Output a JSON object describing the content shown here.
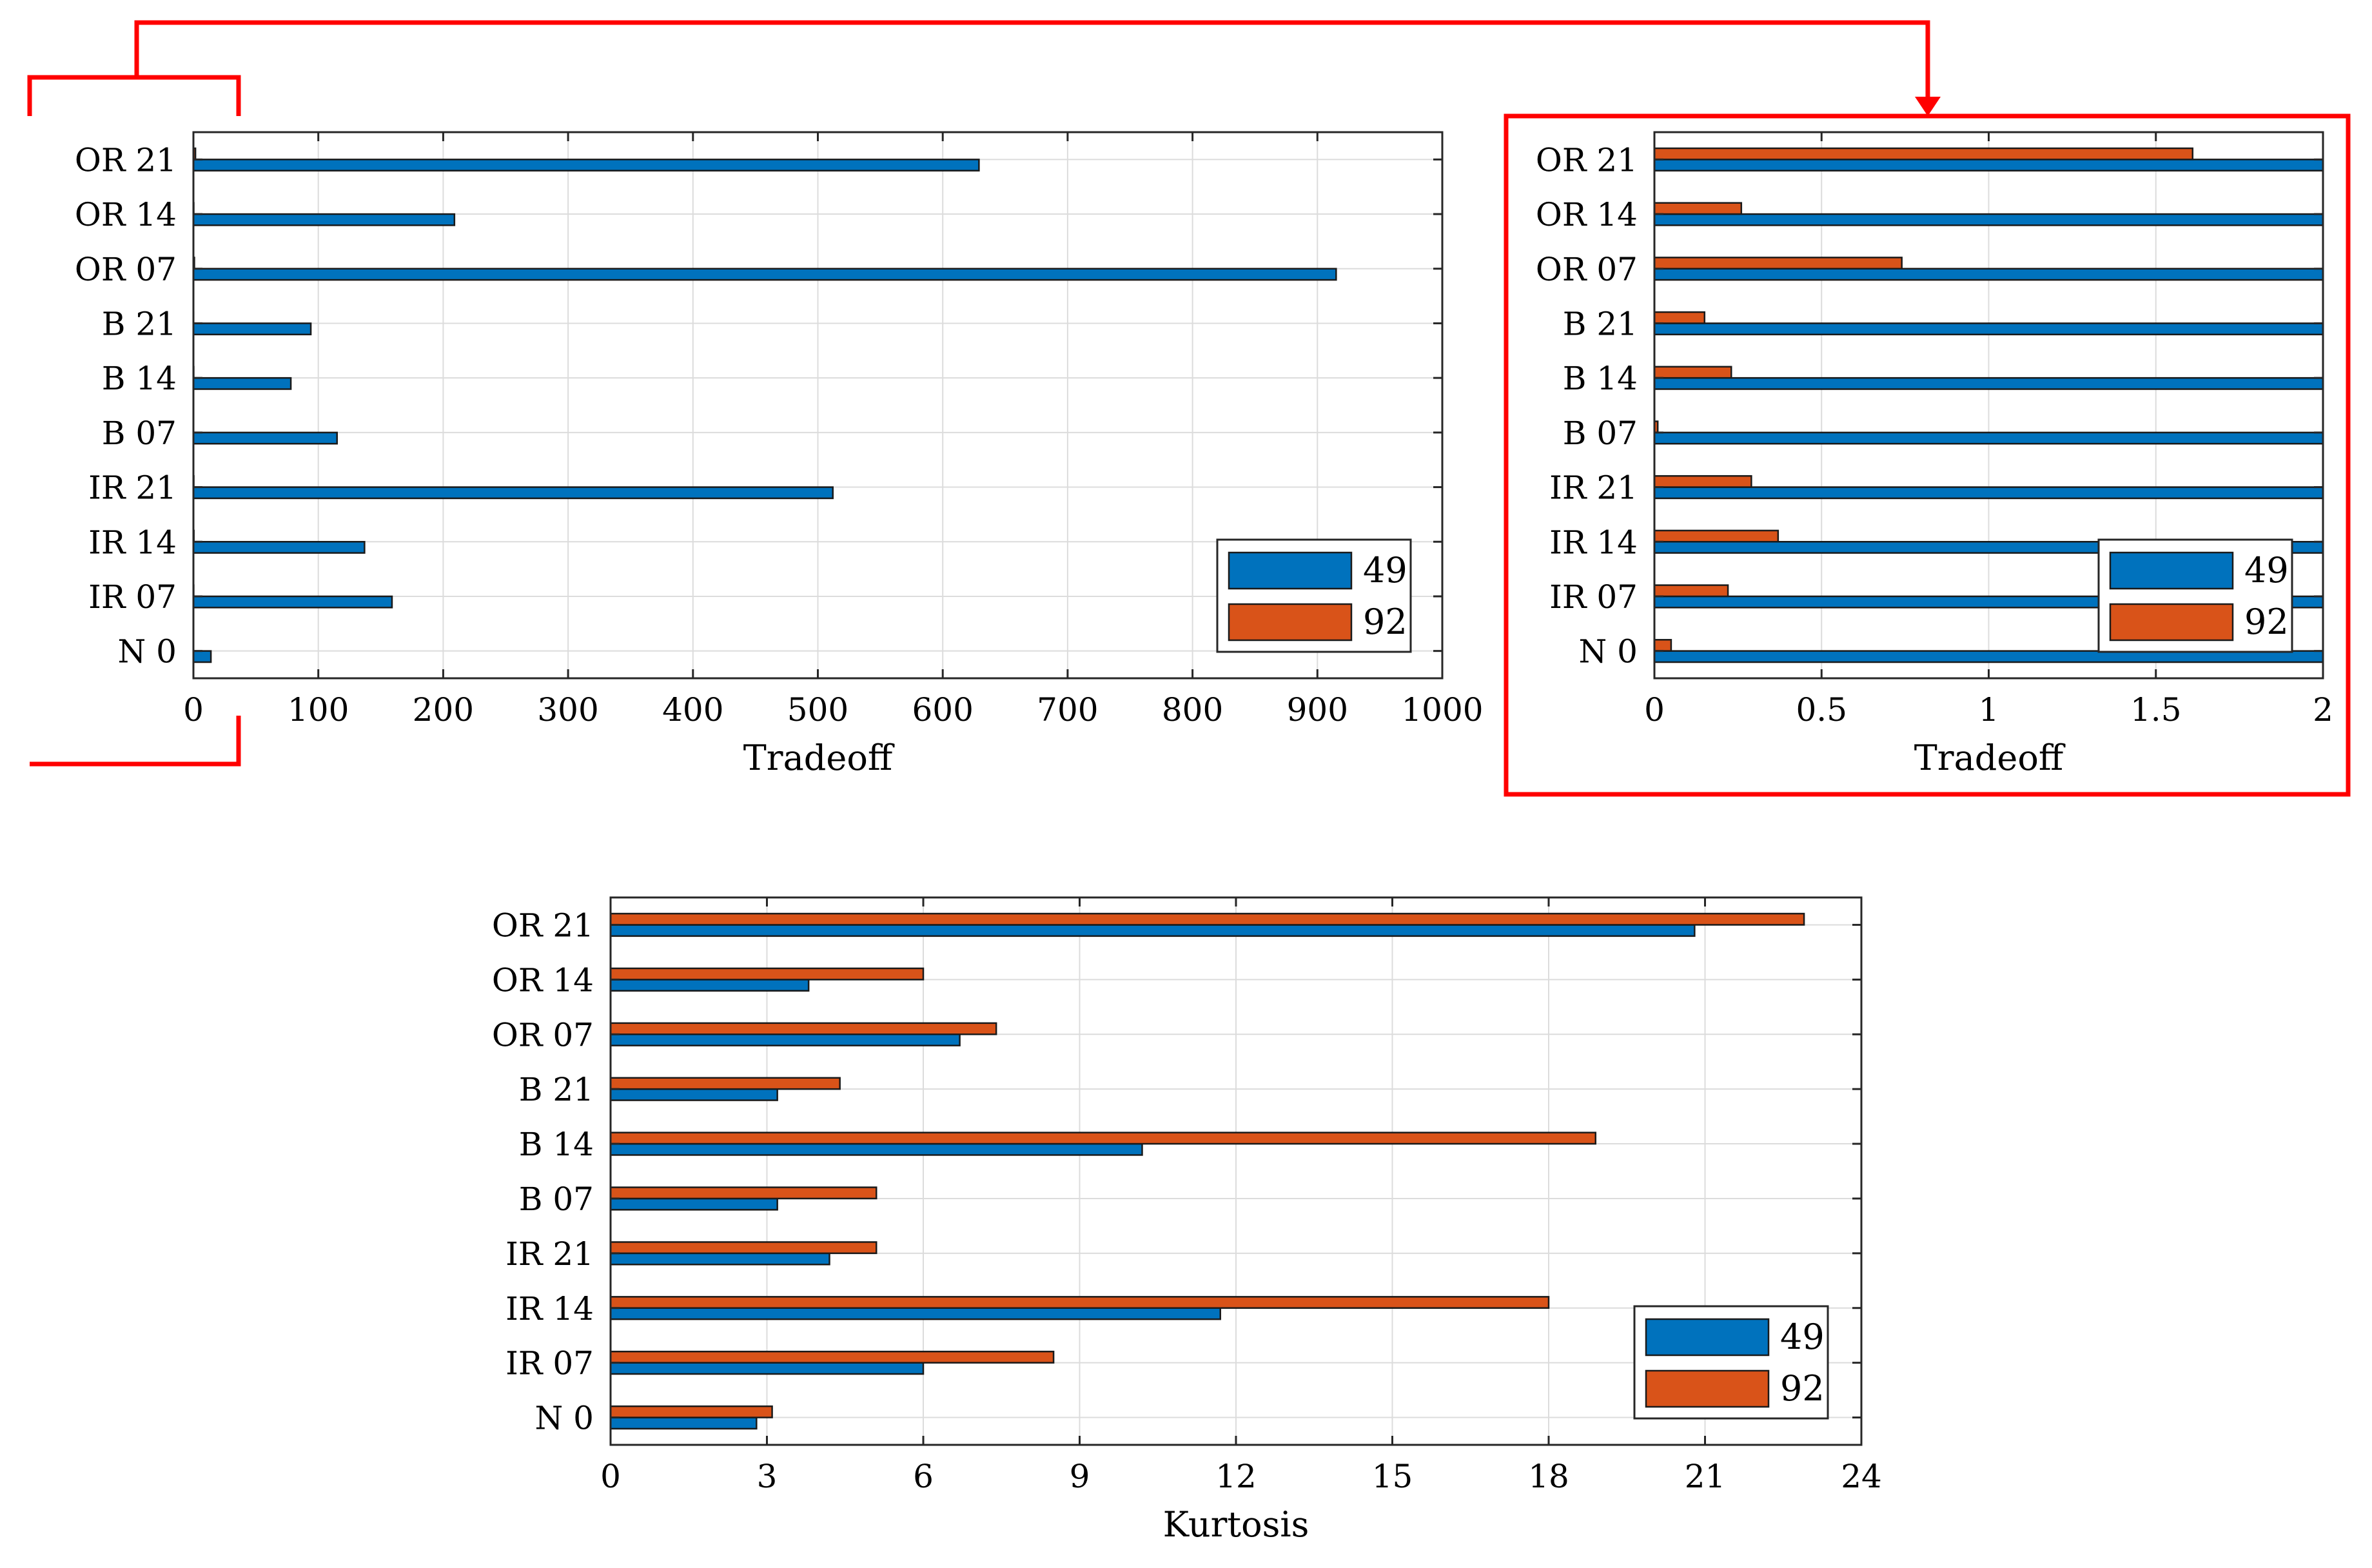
{
  "chart_data": [
    {
      "id": "tradeoff-full",
      "type": "bar",
      "orientation": "horizontal",
      "categories": [
        "N 0",
        "IR 07",
        "IR 14",
        "IR 21",
        "B 07",
        "B 14",
        "B 21",
        "OR 07",
        "OR 14",
        "OR 21"
      ],
      "series": [
        {
          "name": "49",
          "color": "#0072bd",
          "values": [
            14,
            159,
            137,
            512,
            115,
            78,
            94,
            915,
            209,
            629
          ]
        },
        {
          "name": "92",
          "color": "#d95319",
          "values": [
            0.05,
            0.22,
            0.37,
            0.29,
            0.01,
            0.23,
            0.15,
            0.74,
            0.26,
            1.61
          ]
        }
      ],
      "xlabel": "Tradeoff",
      "ylabel": "",
      "xlim": [
        0,
        1000
      ],
      "xticks": [
        0,
        100,
        200,
        300,
        400,
        500,
        600,
        700,
        800,
        900,
        1000
      ],
      "xtick_labels": [
        "0",
        "100",
        "200",
        "300",
        "400",
        "500",
        "600",
        "700",
        "800",
        "900",
        "1000"
      ],
      "grid": true,
      "legend": "bottom-right"
    },
    {
      "id": "tradeoff-zoom",
      "type": "bar",
      "orientation": "horizontal",
      "categories": [
        "N 0",
        "IR 07",
        "IR 14",
        "IR 21",
        "B 07",
        "B 14",
        "B 21",
        "OR 07",
        "OR 14",
        "OR 21"
      ],
      "series": [
        {
          "name": "49",
          "color": "#0072bd",
          "values": [
            14,
            159,
            137,
            512,
            115,
            78,
            94,
            915,
            209,
            629
          ]
        },
        {
          "name": "92",
          "color": "#d95319",
          "values": [
            0.05,
            0.22,
            0.37,
            0.29,
            0.01,
            0.23,
            0.15,
            0.74,
            0.26,
            1.61
          ]
        }
      ],
      "xlabel": "Tradeoff",
      "ylabel": "",
      "xlim": [
        0,
        2
      ],
      "xticks": [
        0,
        0.5,
        1,
        1.5,
        2
      ],
      "xtick_labels": [
        "0",
        "0.5",
        "1",
        "1.5",
        "2"
      ],
      "grid": true,
      "legend": "bottom-right"
    },
    {
      "id": "kurtosis",
      "type": "bar",
      "orientation": "horizontal",
      "categories": [
        "N 0",
        "IR 07",
        "IR 14",
        "IR 21",
        "B 07",
        "B 14",
        "B 21",
        "OR 07",
        "OR 14",
        "OR 21"
      ],
      "series": [
        {
          "name": "49",
          "color": "#0072bd",
          "values": [
            2.8,
            6.0,
            11.7,
            4.2,
            3.2,
            10.2,
            3.2,
            6.7,
            3.8,
            20.8
          ]
        },
        {
          "name": "92",
          "color": "#d95319",
          "values": [
            3.1,
            8.5,
            18.0,
            5.1,
            5.1,
            18.9,
            4.4,
            7.4,
            6.0,
            22.9
          ]
        }
      ],
      "xlabel": "Kurtosis",
      "ylabel": "",
      "xlim": [
        0,
        24
      ],
      "xticks": [
        0,
        3,
        6,
        9,
        12,
        15,
        18,
        21,
        24
      ],
      "xtick_labels": [
        "0",
        "3",
        "6",
        "9",
        "12",
        "15",
        "18",
        "21",
        "24"
      ],
      "grid": true,
      "legend": "bottom-right"
    }
  ],
  "annotation": {
    "color": "#ff0000",
    "description_zoom": "zoom"
  }
}
